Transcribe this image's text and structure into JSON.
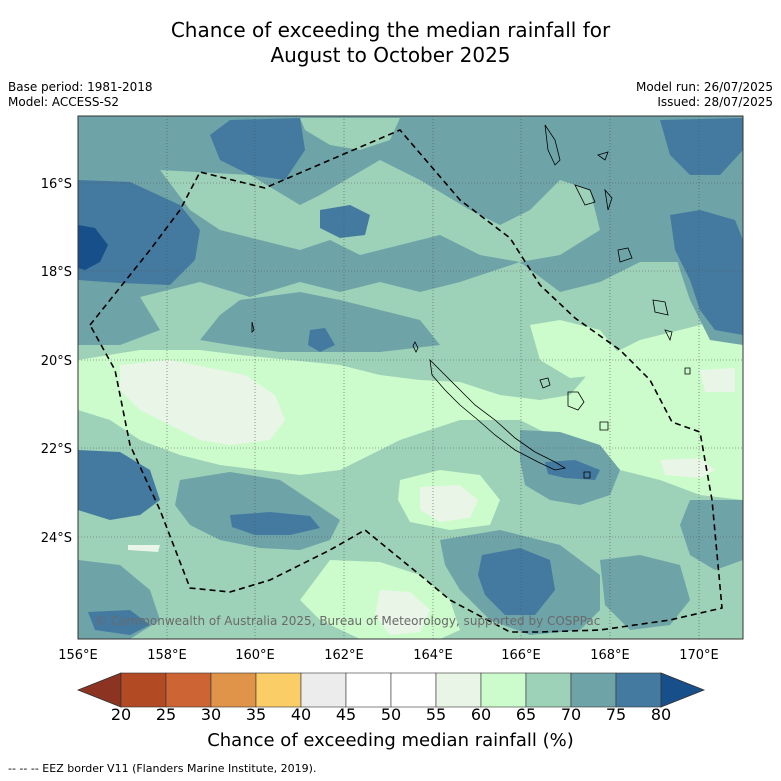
{
  "title_line1": "Chance of exceeding the median rainfall for",
  "title_line2": "August to October 2025",
  "base_period": "Base period: 1981-2018",
  "model": "Model: ACCESS-S2",
  "model_run": "Model run: 26/07/2025",
  "issued": "Issued: 28/07/2025",
  "copyright": "© Commonwealth of Australia 2025, Bureau of Meteorology, supported by COSPPac",
  "lat_labels": [
    "16°S",
    "18°S",
    "20°S",
    "22°S",
    "24°S"
  ],
  "lon_labels": [
    "156°E",
    "158°E",
    "160°E",
    "162°E",
    "164°E",
    "166°E",
    "168°E",
    "170°E"
  ],
  "colorbar": {
    "ticks": [
      "20",
      "25",
      "30",
      "35",
      "40",
      "45",
      "50",
      "55",
      "60",
      "65",
      "70",
      "75",
      "80"
    ],
    "colors": [
      "#b24a24",
      "#cc6533",
      "#e0944a",
      "#fbcd67",
      "#ececec",
      "#ffffff",
      "#ffffff",
      "#e9f5e7",
      "#ccfccc",
      "#9dd1b8",
      "#6ea3a8",
      "#447aa0"
    ],
    "under_color": "#8c3322",
    "over_color": "#174f8a",
    "label": "Chance of exceeding median rainfall (%)"
  },
  "footer": "--  --  -- EEZ border V11 (Flanders Marine Institute, 2019)."
}
